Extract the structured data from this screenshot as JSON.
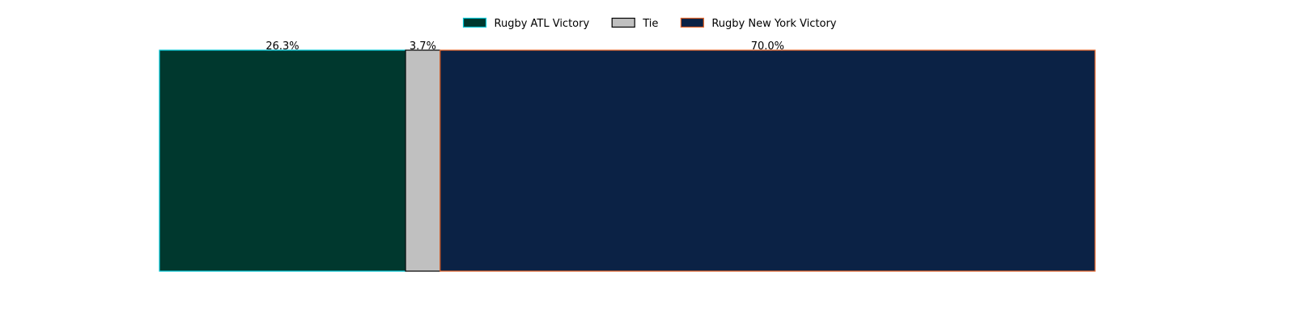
{
  "chart_data": {
    "type": "bar",
    "orientation": "horizontal-stacked",
    "title": "",
    "xlabel": "",
    "ylabel": "",
    "axes_visible": false,
    "grid": false,
    "legend_position": "top-center",
    "series": [
      {
        "name": "Rugby ATL Victory",
        "value": 26.3,
        "label": "26.3%",
        "fill": "#00382E",
        "edge": "#00C8D7"
      },
      {
        "name": "Tie",
        "value": 3.7,
        "label": "3.7%",
        "fill": "#C0C0C0",
        "edge": "#000000"
      },
      {
        "name": "Rugby New York Victory",
        "value": 70.0,
        "label": "70.0%",
        "fill": "#0B2245",
        "edge": "#E8672B"
      }
    ],
    "xlim": [
      0,
      100
    ]
  }
}
